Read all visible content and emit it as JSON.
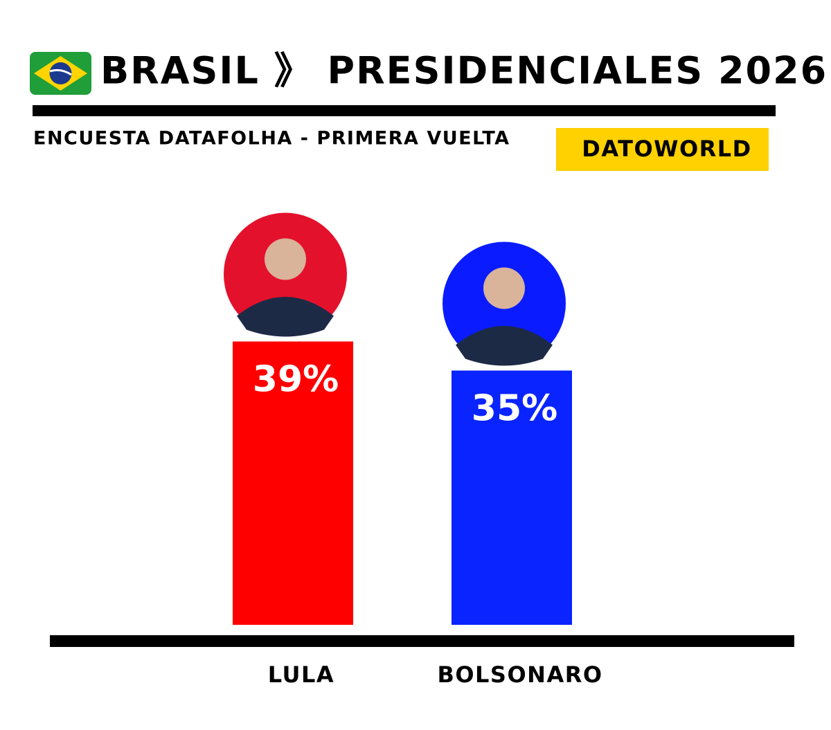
{
  "chart_data": {
    "type": "bar",
    "title": "BRASIL 》 PRESIDENCIALES 2026",
    "subtitle": "ENCUESTA DATAFOLHA - PRIMERA VUELTA",
    "source": "DATOWORLD",
    "categories": [
      "LULA",
      "BOLSONARO"
    ],
    "values": [
      39,
      35
    ],
    "value_labels": [
      "39%",
      "35%"
    ],
    "colors": [
      "#ff0000",
      "#0a24ff"
    ]
  }
}
